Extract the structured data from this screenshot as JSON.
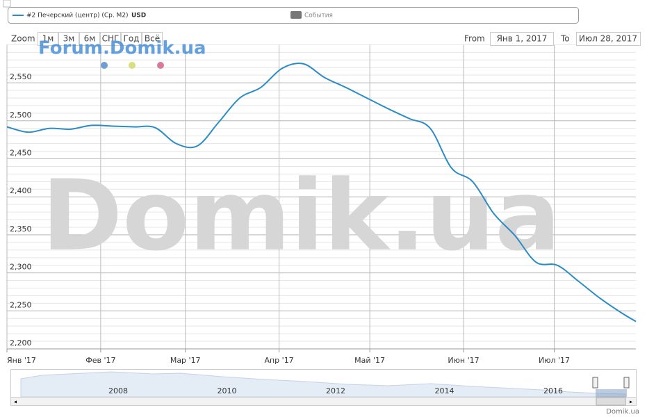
{
  "legend": {
    "currency": "USD",
    "events": "События"
  },
  "range_selector": {
    "zoom_label": "Zoom",
    "buttons": [
      "1м",
      "3м",
      "6м",
      "СНГ",
      "Год",
      "Всё"
    ],
    "from_label": "From",
    "from": "Янв 1, 2017",
    "to_label": "To",
    "to": "Июл 28, 2017"
  },
  "watermarks": [
    "Forum.Domik.ua",
    "Domik.ua"
  ],
  "chart_data": {
    "type": "line",
    "x": [
      "2017-01-01",
      "2017-01-08",
      "2017-01-15",
      "2017-01-22",
      "2017-01-29",
      "2017-02-05",
      "2017-02-12",
      "2017-02-19",
      "2017-02-26",
      "2017-03-05",
      "2017-03-12",
      "2017-03-19",
      "2017-03-26",
      "2017-04-02",
      "2017-04-09",
      "2017-04-16",
      "2017-04-23",
      "2017-04-30",
      "2017-05-07",
      "2017-05-14",
      "2017-05-21",
      "2017-05-28",
      "2017-06-04",
      "2017-06-11",
      "2017-06-18",
      "2017-06-25",
      "2017-07-02",
      "2017-07-09",
      "2017-07-16",
      "2017-07-23",
      "2017-07-28"
    ],
    "series": [
      {
        "name": "#2 Печерский (центр) (Ср. M2)",
        "color": "#2b8cc4",
        "values": [
          2492,
          2485,
          2490,
          2489,
          2494,
          2493,
          2492,
          2491,
          2470,
          2467,
          2498,
          2530,
          2544,
          2569,
          2575,
          2557,
          2544,
          2530,
          2516,
          2503,
          2490,
          2438,
          2420,
          2378,
          2349,
          2314,
          2310,
          2289,
          2267,
          2248,
          2236
        ]
      }
    ],
    "xlim": [
      "2017-01-01",
      "2017-07-28"
    ],
    "xticks": [
      {
        "value": "2017-01-01",
        "label": "Янв '17"
      },
      {
        "value": "2017-02-01",
        "label": "Фев '17"
      },
      {
        "value": "2017-03-01",
        "label": "Мар '17"
      },
      {
        "value": "2017-04-01",
        "label": "Апр '17"
      },
      {
        "value": "2017-05-01",
        "label": "Май '17"
      },
      {
        "value": "2017-06-01",
        "label": "Июн '17"
      },
      {
        "value": "2017-07-01",
        "label": "Июл '17"
      }
    ],
    "ylim": [
      2200,
      2600
    ],
    "yticks": [
      {
        "value": 2200,
        "label": "2,200"
      },
      {
        "value": 2250,
        "label": "2,250"
      },
      {
        "value": 2300,
        "label": "2,300"
      },
      {
        "value": 2350,
        "label": "2,350"
      },
      {
        "value": 2400,
        "label": "2,400"
      },
      {
        "value": 2450,
        "label": "2,450"
      },
      {
        "value": 2500,
        "label": "2,500"
      },
      {
        "value": 2550,
        "label": "2,550"
      }
    ],
    "grid": true
  },
  "navigator": {
    "labels": [
      "2008",
      "2010",
      "2012",
      "2014",
      "2016"
    ]
  },
  "credit": "Domik.ua"
}
